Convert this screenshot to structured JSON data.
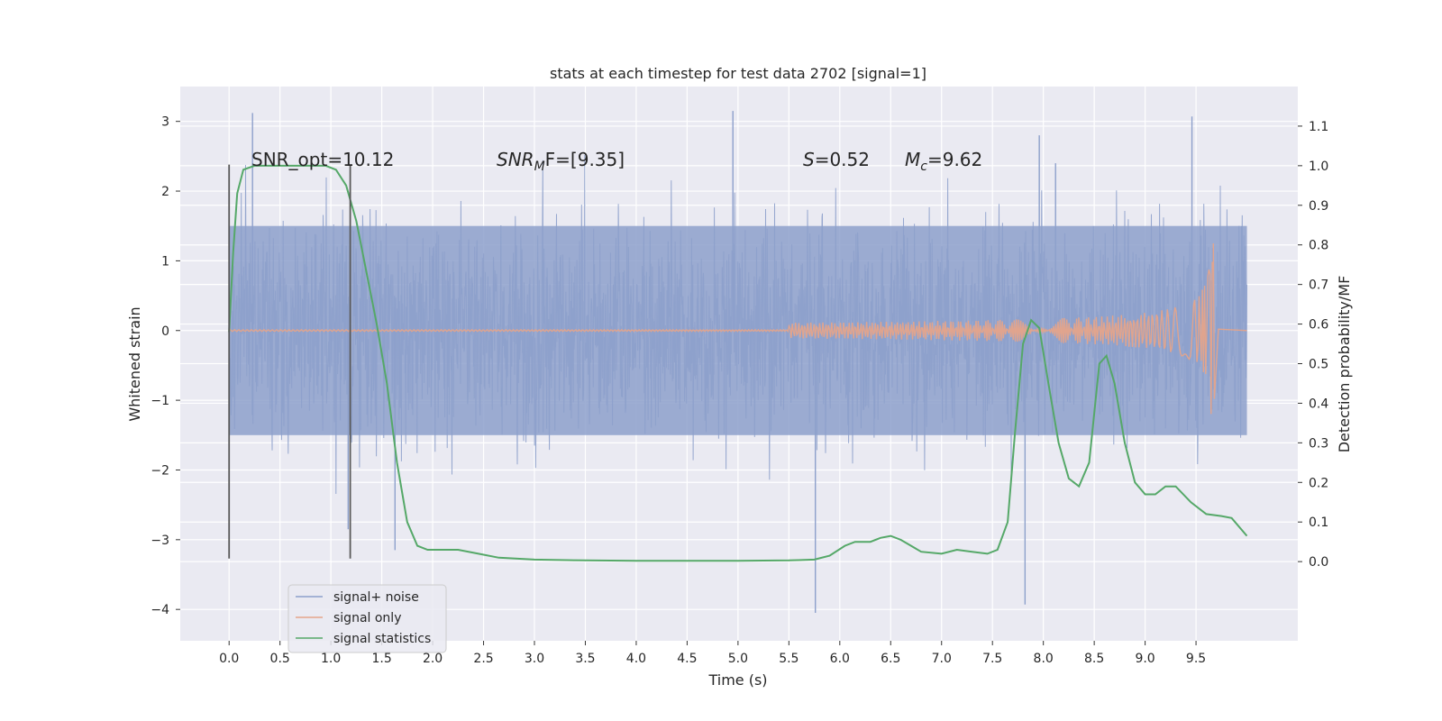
{
  "chart_data": {
    "type": "line",
    "title": "stats at each timestep for test data 2702 [signal=1]",
    "xlabel": "Time (s)",
    "ylabel": "Whitened strain",
    "y2label": "Detection probability/MF",
    "xlim": [
      -0.48,
      10.5
    ],
    "ylim": [
      -4.45,
      3.5
    ],
    "y2lim": [
      -0.2,
      1.2
    ],
    "xticks": [
      "0.0",
      "0.5",
      "1.0",
      "1.5",
      "2.0",
      "2.5",
      "3.0",
      "3.5",
      "4.0",
      "4.5",
      "5.0",
      "5.5",
      "6.0",
      "6.5",
      "7.0",
      "7.5",
      "8.0",
      "8.5",
      "9.0",
      "9.5"
    ],
    "yticks": [
      "3",
      "2",
      "1",
      "0",
      "−1",
      "−2",
      "−3",
      "−4"
    ],
    "y2ticks": [
      "1.1",
      "1.0",
      "0.9",
      "0.8",
      "0.7",
      "0.6",
      "0.5",
      "0.4",
      "0.3",
      "0.2",
      "0.1",
      "0.0"
    ],
    "grid": true,
    "legend_position": "bottom-left",
    "colors": {
      "background": "#eaeaf2",
      "grid": "#ffffff",
      "noise": "#8da0cb",
      "signal": "#e5a48a",
      "stats": "#55a868",
      "markers": "#595959"
    },
    "annotations": {
      "snr_opt": "SNR_opt=10.12",
      "snr_mf_pre": "SNR",
      "snr_mf_sub": "M",
      "snr_mf_post": "F=[9.35]",
      "s_italic": "S",
      "s_value": "=0.52",
      "mc_main": "M",
      "mc_sub": "c",
      "mc_value": "=9.62"
    },
    "vertical_markers": [
      {
        "x": 0.0,
        "y_range": [
          -3.27,
          2.38
        ]
      },
      {
        "x": 1.19,
        "y_range": [
          -3.27,
          2.38
        ]
      }
    ],
    "series": [
      {
        "name": "signal+ noise",
        "style": "noise_band",
        "x_range": [
          0.0,
          10.0
        ],
        "typical_band": [
          -1.5,
          1.5
        ],
        "extremes": [
          {
            "x": 0.23,
            "y": 3.12
          },
          {
            "x": 5.76,
            "y": -4.05
          },
          {
            "x": 7.82,
            "y": -3.93
          },
          {
            "x": 1.63,
            "y": -3.15
          },
          {
            "x": 9.46,
            "y": 3.07
          },
          {
            "x": 4.95,
            "y": 3.15
          },
          {
            "x": 7.96,
            "y": 2.8
          },
          {
            "x": 8.12,
            "y": 2.4
          },
          {
            "x": 1.17,
            "y": -2.85
          }
        ]
      },
      {
        "name": "signal only",
        "style": "chirp",
        "x_start": 5.5,
        "x_peak": 9.67,
        "peak_amplitude": 1.25,
        "peak_negative": -0.98
      },
      {
        "name": "signal statistics",
        "axis": "right",
        "points": [
          [
            0.0,
            0.58
          ],
          [
            0.04,
            0.78
          ],
          [
            0.08,
            0.93
          ],
          [
            0.14,
            0.99
          ],
          [
            0.25,
            1.0
          ],
          [
            0.5,
            1.0
          ],
          [
            0.75,
            1.0
          ],
          [
            0.95,
            1.0
          ],
          [
            1.05,
            0.99
          ],
          [
            1.15,
            0.95
          ],
          [
            1.25,
            0.86
          ],
          [
            1.35,
            0.73
          ],
          [
            1.45,
            0.6
          ],
          [
            1.55,
            0.45
          ],
          [
            1.65,
            0.25
          ],
          [
            1.75,
            0.1
          ],
          [
            1.85,
            0.04
          ],
          [
            1.95,
            0.03
          ],
          [
            2.05,
            0.03
          ],
          [
            2.25,
            0.03
          ],
          [
            2.45,
            0.02
          ],
          [
            2.65,
            0.01
          ],
          [
            3.0,
            0.005
          ],
          [
            3.5,
            0.003
          ],
          [
            4.0,
            0.002
          ],
          [
            4.5,
            0.002
          ],
          [
            5.0,
            0.002
          ],
          [
            5.5,
            0.003
          ],
          [
            5.75,
            0.005
          ],
          [
            5.9,
            0.015
          ],
          [
            6.05,
            0.04
          ],
          [
            6.15,
            0.05
          ],
          [
            6.3,
            0.05
          ],
          [
            6.4,
            0.06
          ],
          [
            6.5,
            0.065
          ],
          [
            6.6,
            0.055
          ],
          [
            6.7,
            0.04
          ],
          [
            6.8,
            0.025
          ],
          [
            7.0,
            0.02
          ],
          [
            7.15,
            0.03
          ],
          [
            7.3,
            0.025
          ],
          [
            7.45,
            0.02
          ],
          [
            7.55,
            0.03
          ],
          [
            7.65,
            0.1
          ],
          [
            7.72,
            0.32
          ],
          [
            7.8,
            0.55
          ],
          [
            7.88,
            0.61
          ],
          [
            7.96,
            0.59
          ],
          [
            8.05,
            0.45
          ],
          [
            8.15,
            0.3
          ],
          [
            8.25,
            0.21
          ],
          [
            8.35,
            0.19
          ],
          [
            8.45,
            0.25
          ],
          [
            8.55,
            0.5
          ],
          [
            8.62,
            0.52
          ],
          [
            8.7,
            0.45
          ],
          [
            8.8,
            0.3
          ],
          [
            8.9,
            0.2
          ],
          [
            9.0,
            0.17
          ],
          [
            9.1,
            0.17
          ],
          [
            9.2,
            0.19
          ],
          [
            9.3,
            0.19
          ],
          [
            9.45,
            0.15
          ],
          [
            9.6,
            0.12
          ],
          [
            9.75,
            0.115
          ],
          [
            9.85,
            0.11
          ],
          [
            10.0,
            0.065
          ]
        ]
      }
    ]
  }
}
